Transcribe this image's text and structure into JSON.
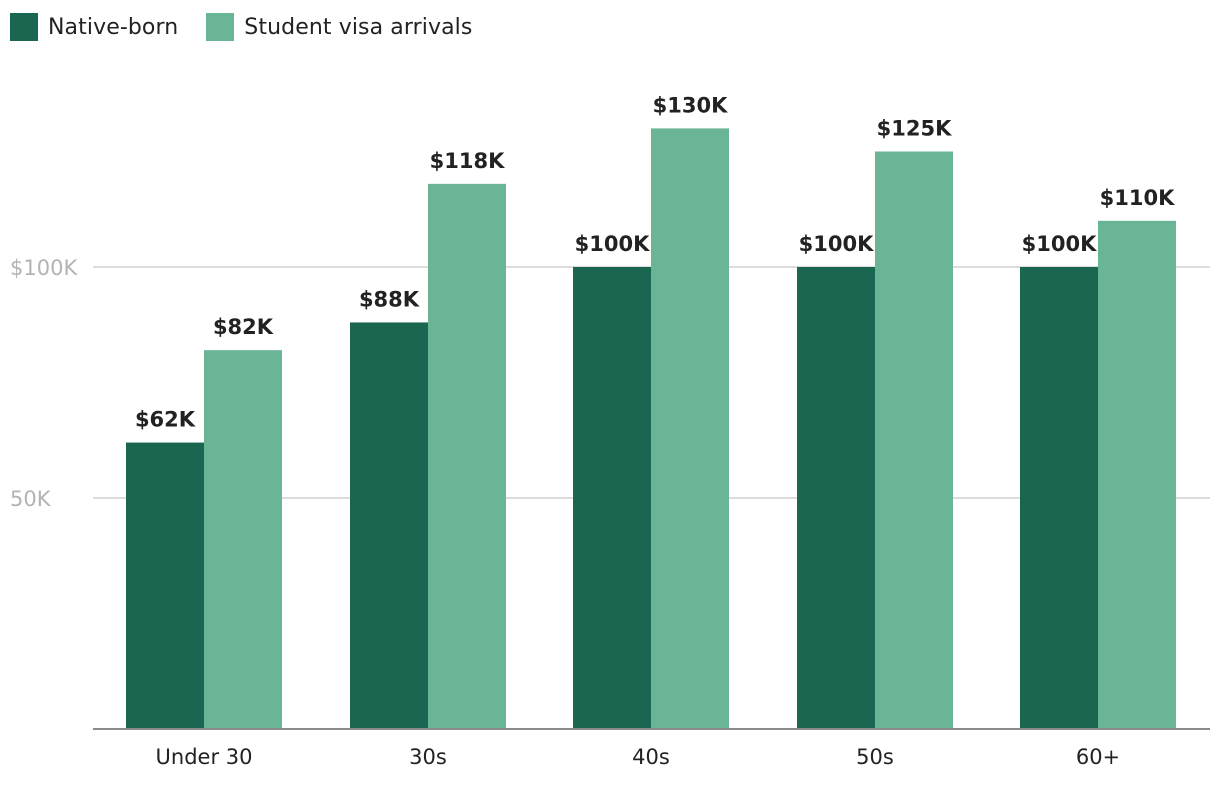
{
  "chart_data": {
    "type": "bar",
    "categories": [
      "Under 30",
      "30s",
      "40s",
      "50s",
      "60+"
    ],
    "series": [
      {
        "name": "Native-born",
        "values": [
          62000,
          88000,
          100000,
          100000,
          100000
        ],
        "labels": [
          "$62K",
          "$88K",
          "$100K",
          "$100K",
          "$100K"
        ],
        "color": "#1b6650"
      },
      {
        "name": "Student visa arrivals",
        "values": [
          82000,
          118000,
          130000,
          125000,
          110000
        ],
        "labels": [
          "$82K",
          "$118K",
          "$130K",
          "$125K",
          "$110K"
        ],
        "color": "#6bb597"
      }
    ],
    "y_ticks": [
      {
        "value": 50000,
        "label": "50K"
      },
      {
        "value": 100000,
        "label": "$100K"
      }
    ],
    "ylim": [
      0,
      140000
    ],
    "grid": true,
    "legend_position": "top-left",
    "title": "",
    "xlabel": "",
    "ylabel": ""
  }
}
